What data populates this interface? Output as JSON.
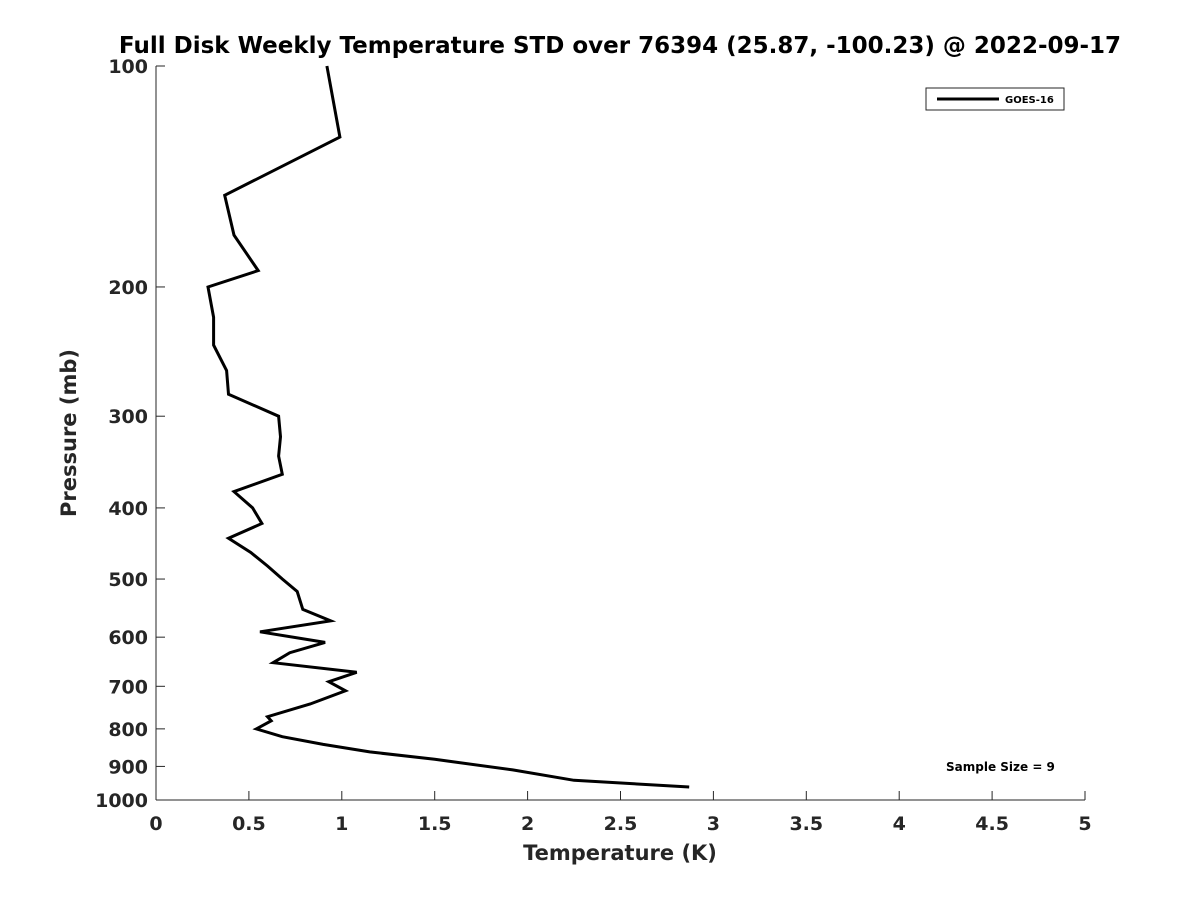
{
  "chart_data": {
    "type": "line",
    "title": "Full Disk Weekly Temperature STD over 76394 (25.87, -100.23) @ 2022-09-17",
    "xlabel": "Temperature (K)",
    "ylabel": "Pressure (mb)",
    "xlim": [
      0,
      5
    ],
    "ylim": [
      100,
      1000
    ],
    "y_scale": "log",
    "y_reversed": true,
    "x_ticks": [
      "0",
      "0.5",
      "1",
      "1.5",
      "2",
      "2.5",
      "3",
      "3.5",
      "4",
      "4.5",
      "5"
    ],
    "y_ticks": [
      "100",
      "200",
      "300",
      "400",
      "500",
      "600",
      "700",
      "800",
      "900",
      "1000"
    ],
    "grid": false,
    "legend_position": "top-right",
    "annotation": "Sample Size = 9",
    "series": [
      {
        "name": "GOES-16",
        "color": "#000000",
        "x": [
          0.92,
          0.99,
          0.37,
          0.42,
          0.55,
          0.28,
          0.31,
          0.31,
          0.38,
          0.39,
          0.66,
          0.67,
          0.66,
          0.68,
          0.42,
          0.52,
          0.57,
          0.39,
          0.51,
          0.6,
          0.68,
          0.76,
          0.79,
          0.94,
          0.56,
          0.91,
          0.72,
          0.63,
          1.08,
          0.93,
          1.02,
          0.83,
          0.6,
          0.62,
          0.54,
          0.68,
          0.9,
          1.15,
          1.5,
          1.92,
          2.25,
          2.87
        ],
        "y": [
          100,
          125,
          150,
          170,
          190,
          200,
          220,
          240,
          260,
          280,
          300,
          320,
          340,
          360,
          380,
          400,
          420,
          440,
          460,
          480,
          500,
          520,
          550,
          570,
          590,
          610,
          630,
          650,
          670,
          690,
          710,
          740,
          770,
          780,
          800,
          820,
          840,
          860,
          880,
          910,
          940,
          960
        ]
      }
    ]
  }
}
